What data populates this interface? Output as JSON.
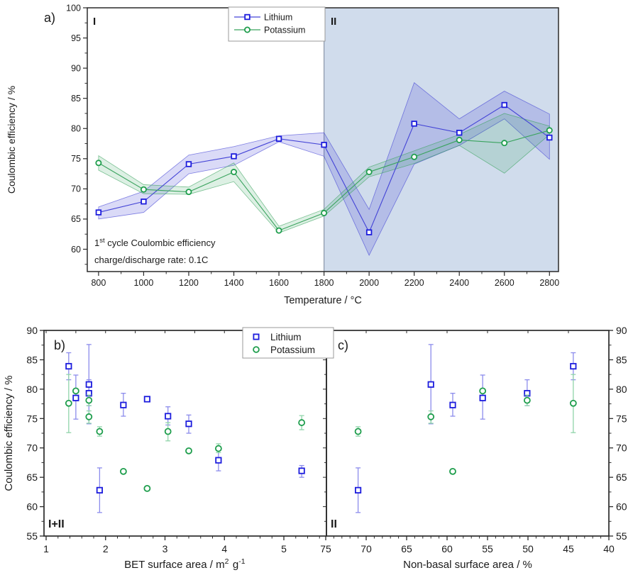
{
  "figure": {
    "panel_a": {
      "label": "a)",
      "region_label_left": "I",
      "region_label_right": "II",
      "xlabel": "Temperature / °C",
      "ylabel": "Coulombic efficiency / %",
      "note_line1": {
        "base": "1",
        "sup": "st",
        "rest": " cycle Coulombic efficiency"
      },
      "note_line2": "charge/discharge rate: 0.1C",
      "legend": [
        "Lithium",
        "Potassium"
      ]
    },
    "panel_b": {
      "label": "b)",
      "region_label": "I+II",
      "xlabel_rich": [
        {
          "t": "BET surface area / m"
        },
        {
          "t": "2",
          "sup": true
        },
        {
          "t": " g"
        },
        {
          "t": "-1",
          "sup": true
        }
      ],
      "ylabel": "Coulombic efficiency / %",
      "legend": [
        "Lithium",
        "Potassium"
      ]
    },
    "panel_c": {
      "label": "c)",
      "region_label": "II",
      "xlabel": "Non-basal surface area / %"
    }
  },
  "colors": {
    "lithium": "#1c1cdd",
    "lithium_line": "#4343d6",
    "lithium_band": "rgba(60,60,215,0.19)",
    "lithium_errbar": "#8c8cec",
    "potassium": "#1f9e4d",
    "potassium_line": "#3aa35e",
    "potassium_band": "rgba(45,160,90,0.16)",
    "potassium_errbar": "#90d4aa",
    "region2_bg": "#d0dcec",
    "region2_edge": "#8a96a8",
    "frame": "#2a2a2a",
    "legend_border": "#999999"
  },
  "chart_data": [
    {
      "id": "a",
      "type": "line",
      "xlabel": "Temperature / °C",
      "ylabel": "Coulombic efficiency / %",
      "xlim": [
        750,
        2840
      ],
      "ylim": [
        56.3,
        100
      ],
      "xticks": [
        800,
        1000,
        1200,
        1400,
        1600,
        1800,
        2000,
        2200,
        2400,
        2600,
        2800
      ],
      "yticks": [
        60,
        65,
        70,
        75,
        80,
        85,
        90,
        95,
        100
      ],
      "shaded_region": {
        "start": 1800,
        "end": 2840,
        "label": "II"
      },
      "region_label_left": "I",
      "legend_position": "top-center",
      "x": [
        800,
        1000,
        1200,
        1400,
        1600,
        1800,
        2000,
        2200,
        2400,
        2600,
        2800
      ],
      "series": [
        {
          "name": "Lithium",
          "marker": "square",
          "values": [
            66.1,
            67.9,
            74.1,
            75.4,
            78.3,
            77.3,
            62.8,
            80.8,
            79.3,
            83.9,
            78.5
          ],
          "lower": [
            65.0,
            66.1,
            72.5,
            73.9,
            77.8,
            75.4,
            59.0,
            74.1,
            77.2,
            81.6,
            74.9
          ],
          "upper": [
            67.0,
            69.6,
            75.6,
            77.0,
            78.8,
            79.3,
            66.6,
            87.6,
            81.6,
            86.2,
            82.4
          ]
        },
        {
          "name": "Potassium",
          "marker": "circle",
          "values": [
            74.3,
            69.9,
            69.5,
            72.8,
            63.1,
            66.0,
            72.8,
            75.3,
            78.1,
            77.6,
            79.7
          ],
          "lower": [
            73.1,
            69.2,
            69.1,
            71.2,
            62.7,
            65.5,
            72.0,
            74.2,
            77.2,
            72.6,
            79.0
          ],
          "upper": [
            75.5,
            70.7,
            70.3,
            74.3,
            63.8,
            66.6,
            73.6,
            76.3,
            79.0,
            82.5,
            80.4
          ]
        }
      ]
    },
    {
      "id": "b",
      "type": "scatter",
      "xlabel": "BET surface area / m2 g-1",
      "ylabel": "Coulombic efficiency / %",
      "region_label": "I+II",
      "xlim": [
        0.96,
        5.72
      ],
      "ylim": [
        55,
        90
      ],
      "xticks": [
        1,
        2,
        3,
        4,
        5
      ],
      "yticks": [
        55,
        60,
        65,
        70,
        75,
        80,
        85,
        90
      ],
      "yaxis_side": "left",
      "legend_position": "top-right",
      "series": [
        {
          "name": "Lithium",
          "marker": "square",
          "points": [
            {
              "x": 5.3,
              "y": 66.1,
              "lo": 65.0,
              "hi": 67.0
            },
            {
              "x": 3.9,
              "y": 67.9,
              "lo": 66.1,
              "hi": 69.6
            },
            {
              "x": 3.4,
              "y": 74.1,
              "lo": 72.5,
              "hi": 75.6
            },
            {
              "x": 3.05,
              "y": 75.4,
              "lo": 73.9,
              "hi": 77.0
            },
            {
              "x": 2.7,
              "y": 78.3,
              "lo": 77.8,
              "hi": 78.8
            },
            {
              "x": 2.3,
              "y": 77.3,
              "lo": 75.4,
              "hi": 79.3
            },
            {
              "x": 1.9,
              "y": 62.8,
              "lo": 59.0,
              "hi": 66.6
            },
            {
              "x": 1.72,
              "y": 80.8,
              "lo": 74.1,
              "hi": 87.6
            },
            {
              "x": 1.72,
              "y": 79.3,
              "lo": 77.2,
              "hi": 81.6
            },
            {
              "x": 1.38,
              "y": 83.9,
              "lo": 81.6,
              "hi": 86.2
            },
            {
              "x": 1.5,
              "y": 78.5,
              "lo": 74.9,
              "hi": 82.4
            }
          ]
        },
        {
          "name": "Potassium",
          "marker": "circle",
          "points": [
            {
              "x": 5.3,
              "y": 74.3,
              "lo": 73.1,
              "hi": 75.5
            },
            {
              "x": 3.9,
              "y": 69.9,
              "lo": 69.2,
              "hi": 70.7
            },
            {
              "x": 3.4,
              "y": 69.5,
              "lo": 69.1,
              "hi": 70.3
            },
            {
              "x": 3.05,
              "y": 72.8,
              "lo": 71.2,
              "hi": 74.3
            },
            {
              "x": 2.7,
              "y": 63.1,
              "lo": 62.7,
              "hi": 63.8
            },
            {
              "x": 2.3,
              "y": 66.0,
              "lo": 65.5,
              "hi": 66.6
            },
            {
              "x": 1.9,
              "y": 72.8,
              "lo": 72.0,
              "hi": 73.6
            },
            {
              "x": 1.72,
              "y": 75.3,
              "lo": 74.2,
              "hi": 76.3
            },
            {
              "x": 1.72,
              "y": 78.1,
              "lo": 77.2,
              "hi": 79.0
            },
            {
              "x": 1.38,
              "y": 77.6,
              "lo": 72.6,
              "hi": 82.5
            },
            {
              "x": 1.5,
              "y": 79.7,
              "lo": 79.0,
              "hi": 80.4
            }
          ]
        }
      ]
    },
    {
      "id": "c",
      "type": "scatter",
      "xlabel": "Non-basal surface area / %",
      "ylabel": "Coulombic efficiency / %",
      "region_label": "II",
      "xlim": [
        75,
        40
      ],
      "x_reversed": true,
      "xticks": [
        75,
        70,
        65,
        60,
        55,
        50,
        45,
        40
      ],
      "yticks": [
        55,
        60,
        65,
        70,
        75,
        80,
        85,
        90
      ],
      "ylim": [
        55,
        90
      ],
      "yaxis_side": "right",
      "series": [
        {
          "name": "Lithium",
          "marker": "square",
          "points": [
            {
              "x": 59.3,
              "y": 77.3,
              "lo": 75.4,
              "hi": 79.3
            },
            {
              "x": 71.0,
              "y": 62.8,
              "lo": 59.0,
              "hi": 66.6
            },
            {
              "x": 62.0,
              "y": 80.8,
              "lo": 74.1,
              "hi": 87.6
            },
            {
              "x": 50.1,
              "y": 79.3,
              "lo": 77.2,
              "hi": 81.6
            },
            {
              "x": 44.4,
              "y": 83.9,
              "lo": 81.6,
              "hi": 86.2
            },
            {
              "x": 55.6,
              "y": 78.5,
              "lo": 74.9,
              "hi": 82.4
            }
          ]
        },
        {
          "name": "Potassium",
          "marker": "circle",
          "points": [
            {
              "x": 59.3,
              "y": 66.0,
              "lo": 65.5,
              "hi": 66.6
            },
            {
              "x": 71.0,
              "y": 72.8,
              "lo": 72.0,
              "hi": 73.6
            },
            {
              "x": 62.0,
              "y": 75.3,
              "lo": 74.2,
              "hi": 76.3
            },
            {
              "x": 50.1,
              "y": 78.1,
              "lo": 77.2,
              "hi": 79.0
            },
            {
              "x": 44.4,
              "y": 77.6,
              "lo": 72.6,
              "hi": 82.5
            },
            {
              "x": 55.6,
              "y": 79.7,
              "lo": 79.0,
              "hi": 80.4
            }
          ]
        }
      ]
    }
  ]
}
